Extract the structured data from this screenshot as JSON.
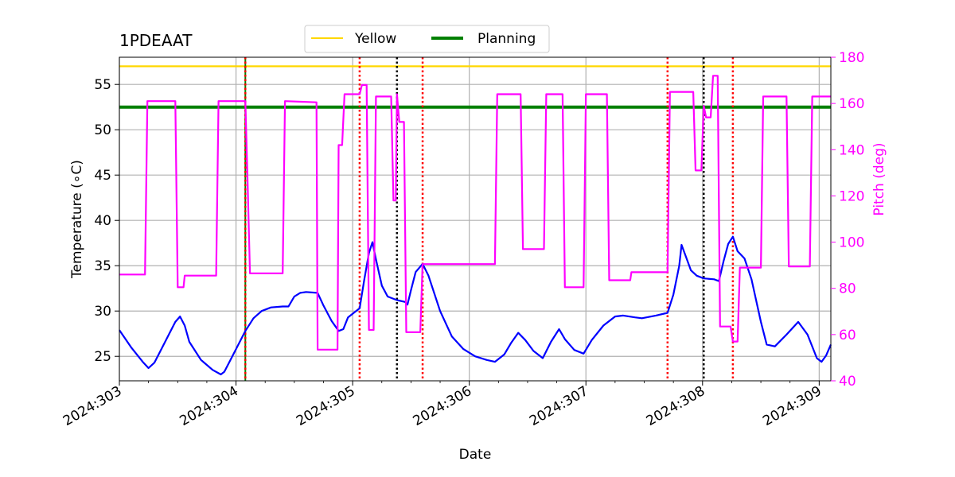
{
  "chart_data": {
    "type": "line",
    "title": "1PDEAAT",
    "xlabel": "Date",
    "ylabel_left": "Temperature (∘C)",
    "ylabel_right": "Pitch (deg)",
    "x_unit": "day-of-year 2024",
    "xlim": [
      303.0,
      309.1
    ],
    "ylim_left": [
      22.3,
      58.0
    ],
    "ylim_right": [
      40,
      180
    ],
    "x_ticks": [
      {
        "value": 303,
        "label": "2024:303"
      },
      {
        "value": 304,
        "label": "2024:304"
      },
      {
        "value": 305,
        "label": "2024:305"
      },
      {
        "value": 306,
        "label": "2024:306"
      },
      {
        "value": 307,
        "label": "2024:307"
      },
      {
        "value": 308,
        "label": "2024:308"
      },
      {
        "value": 309,
        "label": "2024:309"
      }
    ],
    "y_ticks_left": [
      25,
      30,
      35,
      40,
      45,
      50,
      55
    ],
    "y_ticks_right": [
      40,
      60,
      80,
      100,
      120,
      140,
      160,
      180
    ],
    "grid": true,
    "legend_position": "top-center",
    "legend": [
      {
        "label": "Yellow",
        "color": "#ffd700"
      },
      {
        "label": "Planning",
        "color": "#008000"
      }
    ],
    "hlines": [
      {
        "name": "Yellow",
        "y": 57.0,
        "color": "#ffd700",
        "axis": "left"
      },
      {
        "name": "Planning",
        "y": 52.5,
        "color": "#008000",
        "axis": "left"
      }
    ],
    "vlines": [
      {
        "x": 304.08,
        "color": "#008000",
        "style": "solid"
      },
      {
        "x": 304.08,
        "color": "#ff0000",
        "style": "dotted"
      },
      {
        "x": 305.06,
        "color": "#ff0000",
        "style": "dotted"
      },
      {
        "x": 305.38,
        "color": "#000000",
        "style": "dotted"
      },
      {
        "x": 305.6,
        "color": "#ff0000",
        "style": "dotted"
      },
      {
        "x": 307.7,
        "color": "#ff0000",
        "style": "dotted"
      },
      {
        "x": 308.01,
        "color": "#000000",
        "style": "dotted"
      },
      {
        "x": 308.26,
        "color": "#ff0000",
        "style": "dotted"
      }
    ],
    "series": [
      {
        "axis": "left",
        "color": "#0000ff",
        "points": [
          [
            303.0,
            27.9
          ],
          [
            303.1,
            26.0
          ],
          [
            303.2,
            24.4
          ],
          [
            303.25,
            23.7
          ],
          [
            303.3,
            24.3
          ],
          [
            303.4,
            26.8
          ],
          [
            303.48,
            28.8
          ],
          [
            303.52,
            29.4
          ],
          [
            303.56,
            28.4
          ],
          [
            303.6,
            26.6
          ],
          [
            303.7,
            24.6
          ],
          [
            303.8,
            23.5
          ],
          [
            303.87,
            23.0
          ],
          [
            303.9,
            23.3
          ],
          [
            304.0,
            25.8
          ],
          [
            304.08,
            27.8
          ],
          [
            304.15,
            29.2
          ],
          [
            304.22,
            30.0
          ],
          [
            304.3,
            30.4
          ],
          [
            304.4,
            30.5
          ],
          [
            304.45,
            30.5
          ],
          [
            304.5,
            31.6
          ],
          [
            304.55,
            32.0
          ],
          [
            304.6,
            32.1
          ],
          [
            304.7,
            32.0
          ],
          [
            304.75,
            30.6
          ],
          [
            304.82,
            28.9
          ],
          [
            304.88,
            27.8
          ],
          [
            304.92,
            28.0
          ],
          [
            304.96,
            29.3
          ],
          [
            305.06,
            30.3
          ],
          [
            305.1,
            33.5
          ],
          [
            305.14,
            36.4
          ],
          [
            305.17,
            37.6
          ],
          [
            305.2,
            35.7
          ],
          [
            305.25,
            32.8
          ],
          [
            305.3,
            31.6
          ],
          [
            305.38,
            31.2
          ],
          [
            305.45,
            31.0
          ],
          [
            305.47,
            30.7
          ],
          [
            305.5,
            32.3
          ],
          [
            305.54,
            34.3
          ],
          [
            305.6,
            35.2
          ],
          [
            305.65,
            33.9
          ],
          [
            305.75,
            30.0
          ],
          [
            305.85,
            27.2
          ],
          [
            305.95,
            25.8
          ],
          [
            306.05,
            25.0
          ],
          [
            306.15,
            24.6
          ],
          [
            306.22,
            24.4
          ],
          [
            306.3,
            25.2
          ],
          [
            306.36,
            26.5
          ],
          [
            306.42,
            27.6
          ],
          [
            306.48,
            26.8
          ],
          [
            306.55,
            25.6
          ],
          [
            306.63,
            24.8
          ],
          [
            306.7,
            26.6
          ],
          [
            306.77,
            28.0
          ],
          [
            306.82,
            26.9
          ],
          [
            306.9,
            25.7
          ],
          [
            306.98,
            25.3
          ],
          [
            307.05,
            26.8
          ],
          [
            307.15,
            28.4
          ],
          [
            307.25,
            29.4
          ],
          [
            307.32,
            29.5
          ],
          [
            307.42,
            29.3
          ],
          [
            307.48,
            29.2
          ],
          [
            307.6,
            29.5
          ],
          [
            307.7,
            29.8
          ],
          [
            307.75,
            31.8
          ],
          [
            307.8,
            35.0
          ],
          [
            307.82,
            37.3
          ],
          [
            307.86,
            35.9
          ],
          [
            307.9,
            34.5
          ],
          [
            307.95,
            33.9
          ],
          [
            308.01,
            33.6
          ],
          [
            308.1,
            33.5
          ],
          [
            308.14,
            33.3
          ],
          [
            308.18,
            35.5
          ],
          [
            308.22,
            37.4
          ],
          [
            308.26,
            38.2
          ],
          [
            308.3,
            36.6
          ],
          [
            308.36,
            35.8
          ],
          [
            308.42,
            33.5
          ],
          [
            308.5,
            28.8
          ],
          [
            308.55,
            26.3
          ],
          [
            308.62,
            26.1
          ],
          [
            308.72,
            27.4
          ],
          [
            308.82,
            28.8
          ],
          [
            308.9,
            27.4
          ],
          [
            308.98,
            24.8
          ],
          [
            309.02,
            24.4
          ],
          [
            309.06,
            25.1
          ],
          [
            309.1,
            26.3
          ]
        ]
      },
      {
        "axis": "right",
        "color": "#ff00ff",
        "points": [
          [
            303.0,
            86
          ],
          [
            303.22,
            86
          ],
          [
            303.24,
            161
          ],
          [
            303.48,
            161
          ],
          [
            303.5,
            80.5
          ],
          [
            303.55,
            80.5
          ],
          [
            303.56,
            85.5
          ],
          [
            303.83,
            85.5
          ],
          [
            303.85,
            161
          ],
          [
            304.08,
            161
          ],
          [
            304.1,
            125
          ],
          [
            304.12,
            86.5
          ],
          [
            304.4,
            86.5
          ],
          [
            304.42,
            161
          ],
          [
            304.69,
            160.5
          ],
          [
            304.7,
            53.5
          ],
          [
            304.87,
            53.5
          ],
          [
            304.88,
            142
          ],
          [
            304.91,
            142
          ],
          [
            304.93,
            164
          ],
          [
            305.06,
            164
          ],
          [
            305.08,
            168
          ],
          [
            305.12,
            168
          ],
          [
            305.14,
            62
          ],
          [
            305.18,
            62
          ],
          [
            305.2,
            163
          ],
          [
            305.33,
            163
          ],
          [
            305.35,
            118
          ],
          [
            305.37,
            118
          ],
          [
            305.38,
            164
          ],
          [
            305.4,
            152
          ],
          [
            305.44,
            152
          ],
          [
            305.46,
            61
          ],
          [
            305.58,
            61
          ],
          [
            305.6,
            90.5
          ],
          [
            306.22,
            90.5
          ],
          [
            306.24,
            164
          ],
          [
            306.44,
            164
          ],
          [
            306.46,
            97
          ],
          [
            306.64,
            97
          ],
          [
            306.66,
            164
          ],
          [
            306.8,
            164
          ],
          [
            306.82,
            80.5
          ],
          [
            306.98,
            80.5
          ],
          [
            307.0,
            164
          ],
          [
            307.18,
            164
          ],
          [
            307.2,
            83.5
          ],
          [
            307.38,
            83.5
          ],
          [
            307.39,
            87
          ],
          [
            307.7,
            87
          ],
          [
            307.72,
            165
          ],
          [
            307.92,
            165
          ],
          [
            307.94,
            131
          ],
          [
            307.99,
            131
          ],
          [
            308.01,
            159
          ],
          [
            308.03,
            154
          ],
          [
            308.07,
            154
          ],
          [
            308.09,
            172
          ],
          [
            308.13,
            172
          ],
          [
            308.15,
            63.5
          ],
          [
            308.24,
            63.5
          ],
          [
            308.26,
            57
          ],
          [
            308.3,
            57
          ],
          [
            308.32,
            89
          ],
          [
            308.5,
            89
          ],
          [
            308.52,
            163
          ],
          [
            308.72,
            163
          ],
          [
            308.74,
            89.5
          ],
          [
            308.92,
            89.5
          ],
          [
            308.94,
            163
          ],
          [
            309.1,
            163
          ]
        ]
      }
    ]
  }
}
